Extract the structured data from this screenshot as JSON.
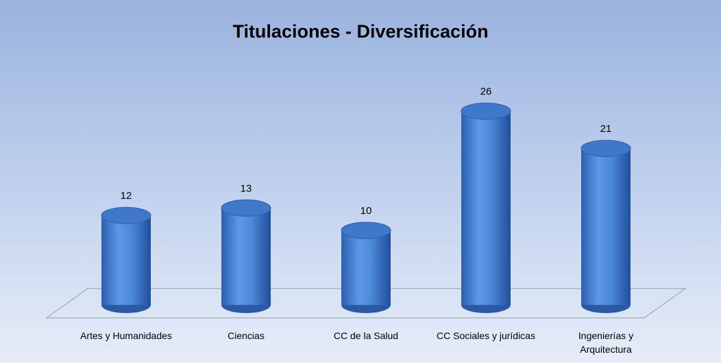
{
  "chart_data": {
    "type": "bar3d",
    "title": "Titulaciones - Diversificación",
    "categories": [
      "Artes y Humanidades",
      "Ciencias",
      "CC de la Salud",
      "CC Sociales y jurídicas",
      "Ingenierías y Arquitectura"
    ],
    "values": [
      12,
      13,
      10,
      26,
      21
    ],
    "color": "#4f8ad8"
  }
}
